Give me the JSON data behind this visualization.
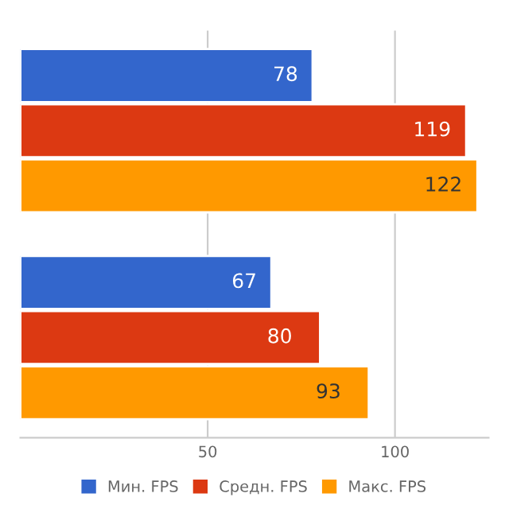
{
  "chart_data": {
    "type": "bar",
    "orientation": "horizontal",
    "categories": [
      null,
      null
    ],
    "series": [
      {
        "name": "Мин. FPS",
        "color": "#3366cc",
        "values": [
          78,
          67
        ]
      },
      {
        "name": "Средн. FPS",
        "color": "#dc3912",
        "values": [
          119,
          80
        ]
      },
      {
        "name": "Макс. FPS",
        "color": "#ff9900",
        "values": [
          122,
          93
        ]
      }
    ],
    "xlim": [
      0,
      125
    ],
    "xticks": [
      50,
      100
    ],
    "grid": "x",
    "legend": "bottom",
    "data_labels": true,
    "tick_labels": "x"
  }
}
